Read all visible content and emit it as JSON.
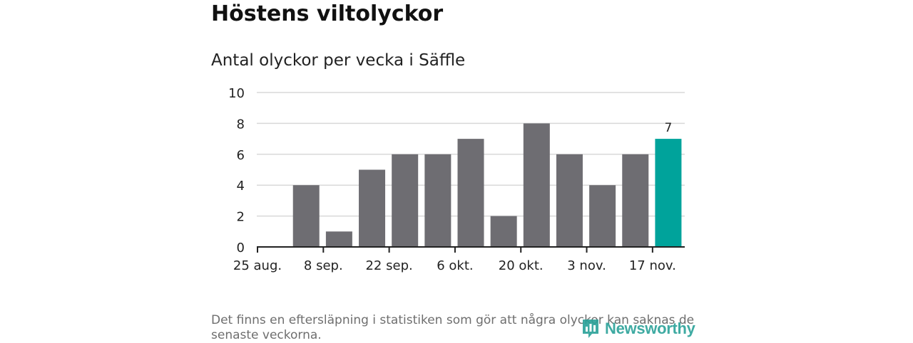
{
  "header": {
    "title": "Höstens viltolyckor",
    "subtitle": "Antal olyckor per vecka i Säffle"
  },
  "footer": {
    "note": "Det finns en eftersläpning i statistiken som gör att några olyckor kan saknas de senaste veckorna.",
    "logo_text": "Newsworthy"
  },
  "colors": {
    "bar": "#6e6d72",
    "highlight": "#00a39b",
    "grid": "#d9d9d9",
    "axis": "#222222"
  },
  "chart_data": {
    "type": "bar",
    "title": "Antal olyckor per vecka i Säffle",
    "xlabel": "",
    "ylabel": "",
    "ylim": [
      0,
      10
    ],
    "yticks": [
      0,
      2,
      4,
      6,
      8,
      10
    ],
    "xtick_labels": [
      "25 aug.",
      "8 sep.",
      "22 sep.",
      "6 okt.",
      "20 okt.",
      "3 nov.",
      "17 nov."
    ],
    "values": [
      4,
      1,
      5,
      6,
      6,
      7,
      2,
      8,
      6,
      4,
      6,
      7
    ],
    "highlight_index": 11,
    "annotation": {
      "index": 11,
      "text": "7"
    },
    "grid": true
  }
}
